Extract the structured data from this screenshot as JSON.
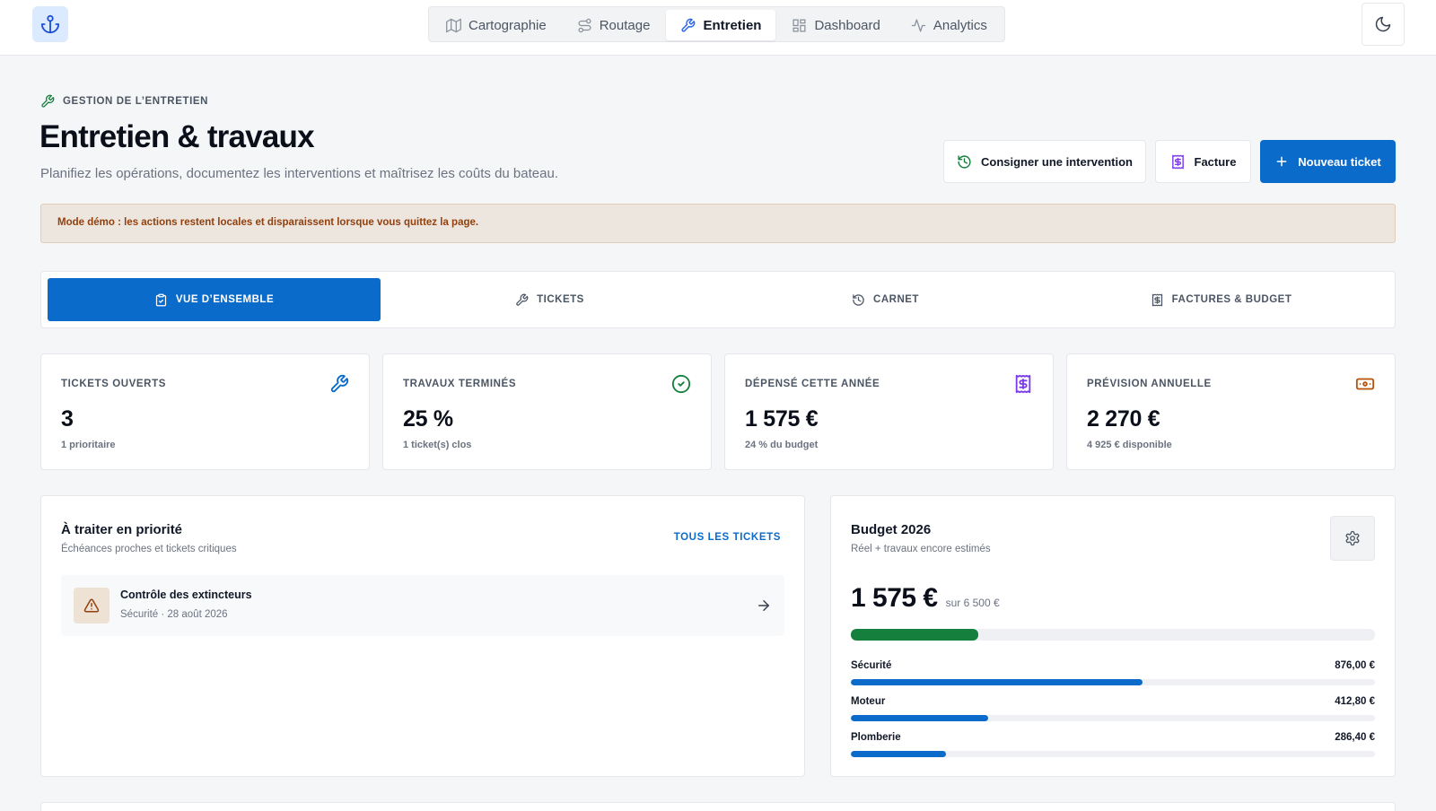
{
  "nav": {
    "items": [
      {
        "label": "Cartographie",
        "icon": "map-icon"
      },
      {
        "label": "Routage",
        "icon": "route-icon"
      },
      {
        "label": "Entretien",
        "icon": "wrench-icon",
        "active": true
      },
      {
        "label": "Dashboard",
        "icon": "dashboard-icon"
      },
      {
        "label": "Analytics",
        "icon": "activity-icon"
      }
    ]
  },
  "header": {
    "eyebrow": "GESTION DE L’ENTRETIEN",
    "title": "Entretien & travaux",
    "subtitle": "Planifiez les opérations, documentez les interventions et maîtrisez les coûts du bateau.",
    "buttons": {
      "log": "Consigner une intervention",
      "invoice": "Facture",
      "new_ticket": "Nouveau ticket"
    }
  },
  "banner": "Mode démo : les actions restent locales et disparaissent lorsque vous quittez la page.",
  "tabs": [
    {
      "label": "VUE D’ENSEMBLE",
      "icon": "clipboard-icon",
      "active": true
    },
    {
      "label": "TICKETS",
      "icon": "wrench-icon"
    },
    {
      "label": "CARNET",
      "icon": "history-icon"
    },
    {
      "label": "FACTURES & BUDGET",
      "icon": "receipt-icon"
    }
  ],
  "kpis": [
    {
      "label": "TICKETS OUVERTS",
      "value": "3",
      "sub": "1 prioritaire",
      "icon": "wrench-icon",
      "color": "#0b6bcb"
    },
    {
      "label": "TRAVAUX TERMINÉS",
      "value": "25 %",
      "sub": "1 ticket(s) clos",
      "icon": "check-circle-icon",
      "color": "#15803d"
    },
    {
      "label": "DÉPENSÉ CETTE ANNÉE",
      "value": "1 575 €",
      "sub": "24 % du budget",
      "icon": "receipt-icon",
      "color": "#7c3aed"
    },
    {
      "label": "PRÉVISION ANNUELLE",
      "value": "2 270 €",
      "sub": "4 925 € disponible",
      "icon": "banknote-icon",
      "color": "#b45309"
    }
  ],
  "priority": {
    "title": "À traiter en priorité",
    "subtitle": "Échéances proches et tickets critiques",
    "link": "TOUS LES TICKETS",
    "items": [
      {
        "title": "Contrôle des extincteurs",
        "meta": "Sécurité · 28 août 2026",
        "icon": "alert-triangle-icon"
      }
    ]
  },
  "budget": {
    "title": "Budget 2026",
    "subtitle": "Réel + travaux encore estimés",
    "spent": "1 575 €",
    "total": "sur 6 500 €",
    "progress": 0.243,
    "bar_color": "#15803d",
    "category_color": "#0b6bcb",
    "categories": [
      {
        "label": "Sécurité",
        "value": "876,00 €",
        "share": 0.556
      },
      {
        "label": "Moteur",
        "value": "412,80 €",
        "share": 0.262
      },
      {
        "label": "Plomberie",
        "value": "286,40 €",
        "share": 0.182
      }
    ]
  }
}
